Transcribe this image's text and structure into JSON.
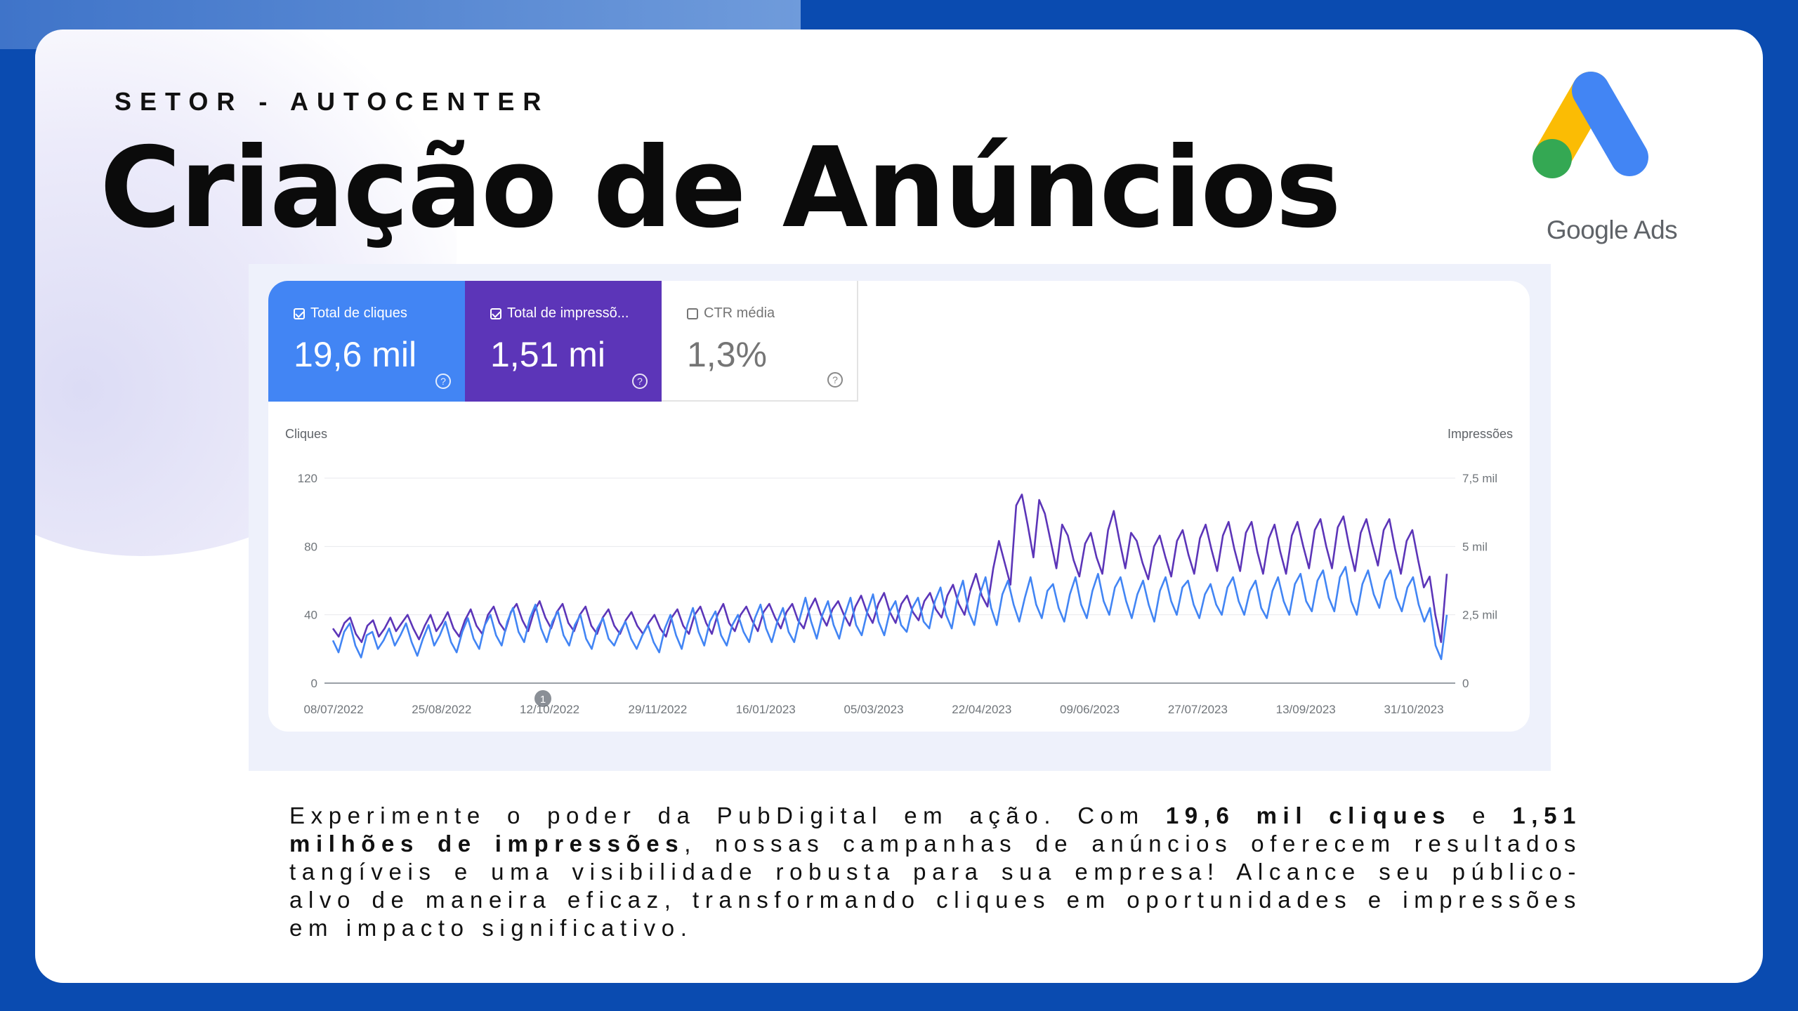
{
  "header": {
    "eyebrow": "SETOR - AUTOCENTER",
    "title": "Criação de Anúncios"
  },
  "logo": {
    "text": "Google Ads",
    "colors": {
      "yellow": "#fbbc04",
      "blue": "#4285f4",
      "green": "#34a853"
    }
  },
  "metrics": [
    {
      "label": "Total de cliques",
      "value": "19,6 mil",
      "checked": true,
      "color": "#4285f4"
    },
    {
      "label": "Total de impressõ...",
      "value": "1,51 mi",
      "checked": true,
      "color": "#5c35b8"
    },
    {
      "label": "CTR média",
      "value": "1,3%",
      "checked": false,
      "color": "#ffffff"
    }
  ],
  "chart_data": {
    "type": "line",
    "y_left": {
      "label": "Cliques",
      "ticks": [
        "0",
        "40",
        "80",
        "120"
      ],
      "range": [
        0,
        120
      ]
    },
    "y_right": {
      "label": "Impressões",
      "ticks": [
        "0",
        "2,5 mil",
        "5 mil",
        "7,5 mil"
      ],
      "range": [
        0,
        7500
      ]
    },
    "x_ticks": [
      "08/07/2022",
      "25/08/2022",
      "12/10/2022",
      "29/11/2022",
      "16/01/2023",
      "05/03/2023",
      "22/04/2023",
      "09/06/2023",
      "27/07/2023",
      "13/09/2023",
      "31/10/2023"
    ],
    "marker_label": "1",
    "grid": true,
    "series": [
      {
        "name": "Total de cliques",
        "axis": "left",
        "color": "#4285f4",
        "values": [
          25,
          18,
          30,
          35,
          22,
          15,
          28,
          30,
          20,
          25,
          32,
          22,
          28,
          35,
          24,
          16,
          26,
          34,
          22,
          28,
          36,
          24,
          18,
          30,
          38,
          26,
          20,
          34,
          40,
          28,
          22,
          36,
          44,
          30,
          24,
          38,
          46,
          32,
          24,
          36,
          42,
          28,
          22,
          34,
          40,
          26,
          20,
          32,
          38,
          26,
          22,
          30,
          36,
          26,
          20,
          28,
          34,
          24,
          18,
          32,
          40,
          28,
          20,
          34,
          44,
          30,
          22,
          36,
          42,
          28,
          22,
          34,
          40,
          30,
          24,
          38,
          46,
          32,
          24,
          36,
          44,
          30,
          24,
          38,
          50,
          36,
          26,
          40,
          48,
          34,
          26,
          40,
          50,
          34,
          28,
          42,
          52,
          36,
          28,
          42,
          48,
          34,
          30,
          44,
          50,
          36,
          32,
          48,
          56,
          40,
          32,
          50,
          60,
          42,
          34,
          52,
          62,
          44,
          34,
          52,
          60,
          46,
          36,
          50,
          62,
          46,
          38,
          54,
          58,
          44,
          36,
          52,
          62,
          46,
          38,
          54,
          64,
          48,
          40,
          56,
          62,
          48,
          38,
          52,
          60,
          46,
          36,
          54,
          62,
          48,
          40,
          56,
          60,
          46,
          38,
          52,
          58,
          46,
          40,
          56,
          62,
          48,
          40,
          54,
          60,
          44,
          38,
          54,
          62,
          48,
          40,
          58,
          64,
          48,
          42,
          60,
          66,
          50,
          42,
          62,
          68,
          48,
          40,
          58,
          66,
          52,
          44,
          60,
          66,
          50,
          42,
          56,
          62,
          46,
          36,
          44,
          22,
          14,
          40
        ]
      },
      {
        "name": "Total de impressões",
        "axis": "right",
        "color": "#5c35b8",
        "values": [
          2000,
          1700,
          2200,
          2400,
          1800,
          1500,
          2100,
          2300,
          1700,
          2000,
          2400,
          1900,
          2200,
          2500,
          2000,
          1600,
          2100,
          2500,
          1900,
          2200,
          2600,
          2000,
          1700,
          2300,
          2700,
          2100,
          1800,
          2500,
          2800,
          2200,
          1900,
          2600,
          2900,
          2300,
          1900,
          2600,
          3000,
          2400,
          2000,
          2600,
          2900,
          2200,
          1900,
          2500,
          2800,
          2100,
          1800,
          2400,
          2700,
          2100,
          1800,
          2300,
          2600,
          2100,
          1800,
          2200,
          2500,
          2000,
          1700,
          2400,
          2700,
          2100,
          1800,
          2500,
          2800,
          2200,
          1800,
          2500,
          2900,
          2200,
          1900,
          2500,
          2800,
          2300,
          1900,
          2600,
          2900,
          2400,
          2000,
          2600,
          2900,
          2300,
          2000,
          2700,
          3100,
          2500,
          2100,
          2700,
          3000,
          2500,
          2100,
          2800,
          3200,
          2600,
          2200,
          2900,
          3300,
          2600,
          2200,
          2900,
          3200,
          2600,
          2300,
          3000,
          3300,
          2700,
          2400,
          3200,
          3600,
          2900,
          2500,
          3400,
          4000,
          3200,
          2800,
          4200,
          5200,
          4400,
          3600,
          6500,
          6900,
          5800,
          4600,
          6700,
          6200,
          5200,
          4200,
          5800,
          5400,
          4500,
          3900,
          5100,
          5500,
          4600,
          4000,
          5600,
          6300,
          5200,
          4200,
          5500,
          5200,
          4400,
          3800,
          5000,
          5400,
          4600,
          3900,
          5200,
          5600,
          4700,
          4000,
          5300,
          5800,
          4900,
          4100,
          5400,
          5900,
          4900,
          4100,
          5500,
          5900,
          4800,
          4000,
          5300,
          5800,
          4800,
          4000,
          5400,
          5900,
          5000,
          4200,
          5600,
          6000,
          5000,
          4200,
          5700,
          6100,
          5000,
          4100,
          5500,
          6000,
          5100,
          4300,
          5600,
          6000,
          4900,
          4000,
          5200,
          5600,
          4500,
          3500,
          3900,
          2500,
          1500,
          4000
        ]
      }
    ]
  },
  "paragraph": {
    "p1": "Experimente o poder da PubDigital em ação. Com ",
    "b1": "19,6 mil cliques",
    "p2": " e ",
    "b2": "1,51 milhões de impressões",
    "p3": ", nossas campanhas de anúncios oferecem resultados tangíveis e uma visibilidade robusta para sua empresa! Alcance seu público-alvo de maneira eficaz, transformando cliques em oportunidades e impressões em impacto significativo."
  }
}
